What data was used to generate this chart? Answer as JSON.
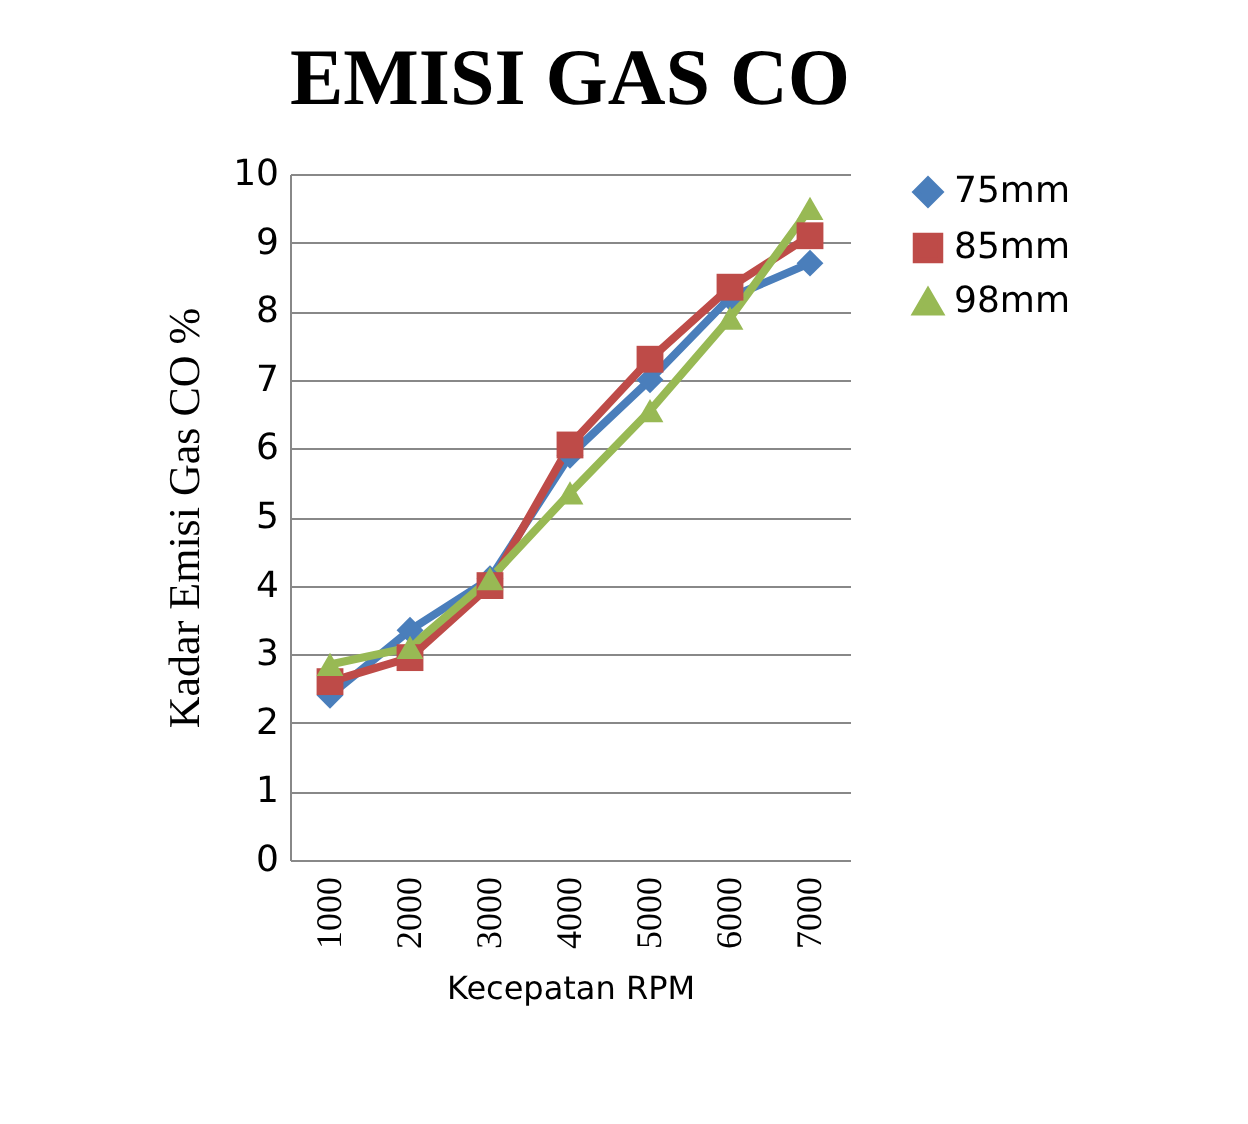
{
  "chart_data": {
    "type": "line",
    "title": "EMISI GAS CO",
    "xlabel": "Kecepatan RPM",
    "ylabel": "Kadar Emisi Gas CO %",
    "categories": [
      "1000",
      "2000",
      "3000",
      "4000",
      "5000",
      "6000",
      "7000"
    ],
    "series": [
      {
        "name": "75mm",
        "color": "#4a7ebb",
        "marker": "diamond",
        "values": [
          2.4,
          3.35,
          4.1,
          5.9,
          7.0,
          8.2,
          8.7
        ]
      },
      {
        "name": "85mm",
        "color": "#be4b48",
        "marker": "square",
        "values": [
          2.6,
          2.95,
          4.0,
          6.05,
          7.3,
          8.35,
          9.1
        ]
      },
      {
        "name": "98mm",
        "color": "#98b954",
        "marker": "triangle",
        "values": [
          2.85,
          3.1,
          4.1,
          5.35,
          6.55,
          7.9,
          9.5
        ]
      }
    ],
    "ylim": [
      0,
      10
    ],
    "yticks": [
      0,
      1,
      2,
      3,
      4,
      5,
      6,
      7,
      8,
      9,
      10
    ],
    "grid": "y",
    "legend": "right",
    "line_style": "solid"
  }
}
